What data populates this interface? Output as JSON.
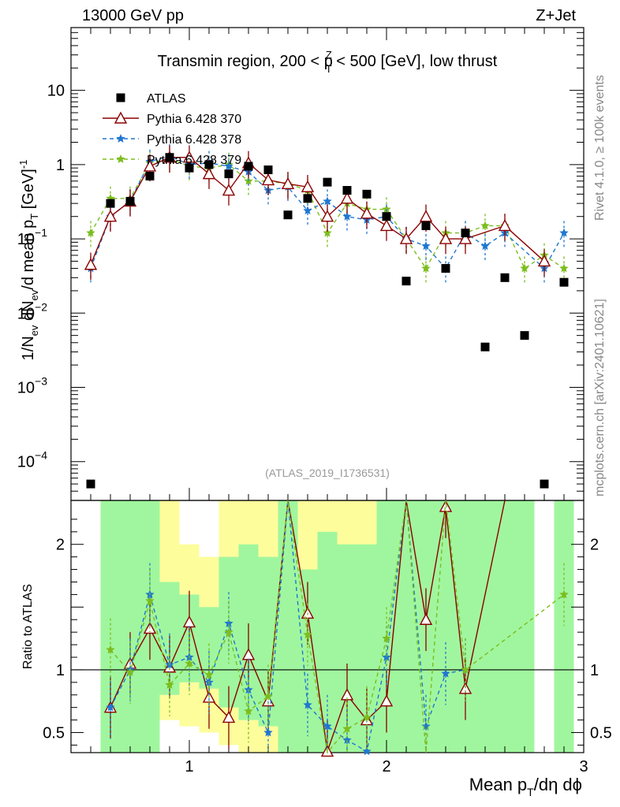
{
  "header": {
    "left": "13000 GeV pp",
    "right": "Z+Jet"
  },
  "chart_data": {
    "type": "scatter",
    "title_parts": {
      "pre": "Transmin region, 200 < p",
      "sup": "Z",
      "sub": "T",
      "post": " < 500 [GeV], low thrust"
    },
    "ylabel": "1/N_ev dN_ev/d mean p_T [GeV]^-1",
    "ylabel_parts": {
      "a": "1/N",
      "a_sub": "ev",
      "b": " dN",
      "b_sub": "ev",
      "c": "/d mean p",
      "c_sub": "T",
      "d": " [GeV]",
      "d_sup": "-1"
    },
    "xlabel_parts": {
      "a": "Mean p",
      "a_sub": "T",
      "b": "/dη dϕ"
    },
    "ratio_ylabel": "Ratio to ATLAS",
    "x_range": [
      0.4,
      3.0
    ],
    "y_log_range": [
      3e-05,
      70
    ],
    "ratio_range": [
      0.34,
      2.35
    ],
    "x_ticks": [
      1,
      2,
      3
    ],
    "y_ticks": [
      {
        "v": 10,
        "label": "10"
      },
      {
        "v": 1,
        "label": "1"
      },
      {
        "v": 0.1,
        "label": "10",
        "exp": "−1"
      },
      {
        "v": 0.01,
        "label": "10",
        "exp": "−2"
      },
      {
        "v": 0.001,
        "label": "10",
        "exp": "−3"
      },
      {
        "v": 0.0001,
        "label": "10",
        "exp": "−4"
      }
    ],
    "ratio_ticks": [
      {
        "v": 2,
        "label": "2"
      },
      {
        "v": 1,
        "label": "1"
      },
      {
        "v": 0.5,
        "label": "0.5"
      }
    ],
    "annotation": "(ATLAS_2019_I1736531)",
    "legend": [
      {
        "name": "ATLAS",
        "color": "#000000",
        "marker": "square",
        "dash": false
      },
      {
        "name": "Pythia 6.428 370",
        "color": "#8b0000",
        "marker": "triangle",
        "dash": false
      },
      {
        "name": "Pythia 6.428 378",
        "color": "#1f77d0",
        "marker": "star",
        "dash": true
      },
      {
        "name": "Pythia 6.428 379",
        "color": "#7cbd1e",
        "marker": "star",
        "dash": true
      }
    ],
    "x": [
      0.5,
      0.6,
      0.7,
      0.8,
      0.9,
      1.0,
      1.1,
      1.2,
      1.3,
      1.4,
      1.5,
      1.6,
      1.7,
      1.8,
      1.9,
      2.0,
      2.1,
      2.2,
      2.3,
      2.4,
      2.5,
      2.6,
      2.7,
      2.8,
      2.9
    ],
    "series": [
      {
        "name": "ATLAS",
        "values": [
          5e-05,
          0.3,
          0.32,
          0.7,
          1.25,
          0.9,
          1.0,
          0.75,
          0.95,
          0.85,
          0.21,
          0.35,
          0.58,
          0.45,
          0.4,
          0.2,
          0.027,
          0.15,
          0.04,
          0.12,
          0.0035,
          0.03,
          0.005,
          5e-05,
          0.026
        ]
      },
      {
        "name": "Pythia 6.428 370",
        "values": [
          0.045,
          0.2,
          0.32,
          0.95,
          1.25,
          1.25,
          0.75,
          0.45,
          1.05,
          0.62,
          0.55,
          0.5,
          0.2,
          0.35,
          0.22,
          0.15,
          0.1,
          0.2,
          0.1,
          0.1,
          null,
          0.15,
          null,
          0.05,
          null
        ]
      },
      {
        "name": "Pythia 6.428 378",
        "values": [
          0.04,
          0.2,
          0.32,
          1.1,
          1.3,
          1.0,
          1.05,
          0.95,
          0.8,
          0.45,
          0.5,
          0.24,
          0.32,
          0.2,
          0.18,
          0.2,
          0.1,
          0.08,
          0.04,
          0.12,
          0.08,
          0.12,
          null,
          0.04,
          0.12
        ]
      },
      {
        "name": "Pythia 6.428 379",
        "values": [
          0.12,
          0.35,
          0.35,
          1.05,
          1.2,
          0.95,
          0.9,
          1.0,
          0.6,
          0.6,
          0.55,
          0.45,
          0.12,
          0.3,
          0.25,
          0.25,
          0.1,
          0.04,
          0.12,
          0.12,
          0.15,
          0.15,
          0.04,
          0.06,
          0.04
        ]
      }
    ],
    "ratio_series": [
      {
        "name": "Pythia 6.428 370",
        "values": [
          null,
          0.7,
          1.05,
          1.33,
          1.02,
          1.38,
          0.78,
          0.62,
          1.12,
          0.75,
          2.6,
          1.45,
          0.35,
          0.8,
          0.6,
          0.75,
          4.0,
          1.4,
          2.3,
          0.85,
          null,
          4.0,
          null,
          null,
          null
        ]
      },
      {
        "name": "Pythia 6.428 378",
        "values": [
          null,
          0.7,
          1.0,
          1.6,
          1.04,
          1.1,
          0.9,
          1.37,
          0.84,
          0.5,
          2.6,
          0.72,
          0.55,
          0.44,
          0.35,
          1.1,
          3.5,
          0.55,
          0.97,
          1.0,
          null,
          null,
          null,
          null,
          null
        ]
      },
      {
        "name": "Pythia 6.428 379",
        "values": [
          null,
          1.16,
          0.98,
          1.55,
          0.88,
          1.05,
          0.96,
          1.3,
          0.67,
          0.79,
          2.6,
          1.28,
          0.2,
          0.53,
          0.62,
          1.25,
          3.7,
          0.25,
          3.0,
          1.0,
          null,
          null,
          null,
          null,
          1.6
        ]
      }
    ],
    "bands": [
      {
        "x0": 0.55,
        "x1": 0.65,
        "g": [
          0.3,
          2.5
        ],
        "y": null
      },
      {
        "x0": 0.65,
        "x1": 0.75,
        "g": [
          0.3,
          2.5
        ],
        "y": null
      },
      {
        "x0": 0.75,
        "x1": 0.85,
        "g": [
          0.3,
          2.5
        ],
        "y": [
          0.3,
          2.5
        ]
      },
      {
        "x0": 0.85,
        "x1": 0.95,
        "g": [
          0.8,
          1.7
        ],
        "y": [
          0.6,
          2.5
        ]
      },
      {
        "x0": 0.95,
        "x1": 1.05,
        "g": [
          0.9,
          1.6
        ],
        "y": [
          0.55,
          2.0
        ]
      },
      {
        "x0": 1.05,
        "x1": 1.15,
        "g": [
          0.85,
          1.5
        ],
        "y": [
          0.5,
          1.9
        ]
      },
      {
        "x0": 1.15,
        "x1": 1.25,
        "g": [
          0.7,
          1.9
        ],
        "y": [
          0.4,
          2.5
        ]
      },
      {
        "x0": 1.25,
        "x1": 1.35,
        "g": [
          0.6,
          2.0
        ],
        "y": [
          0.3,
          2.5
        ]
      },
      {
        "x0": 1.35,
        "x1": 1.45,
        "g": [
          0.55,
          1.9
        ],
        "y": [
          0.3,
          2.5
        ]
      },
      {
        "x0": 1.45,
        "x1": 1.55,
        "g": [
          0.3,
          2.5
        ],
        "y": null
      },
      {
        "x0": 1.55,
        "x1": 1.65,
        "g": [
          0.3,
          1.8
        ],
        "y": [
          0.3,
          2.5
        ]
      },
      {
        "x0": 1.65,
        "x1": 1.75,
        "g": [
          0.3,
          2.1
        ],
        "y": [
          0.3,
          2.5
        ]
      },
      {
        "x0": 1.75,
        "x1": 1.85,
        "g": [
          0.3,
          2.0
        ],
        "y": [
          0.3,
          2.5
        ]
      },
      {
        "x0": 1.85,
        "x1": 1.95,
        "g": [
          0.3,
          2.0
        ],
        "y": [
          0.3,
          2.5
        ]
      },
      {
        "x0": 1.95,
        "x1": 2.05,
        "g": [
          0.3,
          2.5
        ],
        "y": null
      },
      {
        "x0": 2.05,
        "x1": 2.55,
        "g": [
          0.3,
          2.5
        ],
        "y": null
      },
      {
        "x0": 2.55,
        "x1": 2.75,
        "g": [
          0.3,
          2.5
        ],
        "y": null
      },
      {
        "x0": 2.85,
        "x1": 2.95,
        "g": [
          0.3,
          2.5
        ],
        "y": null
      }
    ],
    "band_colors": {
      "green": "#a0f69e",
      "yellow": "#fdfd9c"
    }
  },
  "side_text": {
    "rivet": "Rivet 4.1.0, ≥ 100k events",
    "mcplots": "mcplots.cern.ch [arXiv:2401.10621]"
  }
}
